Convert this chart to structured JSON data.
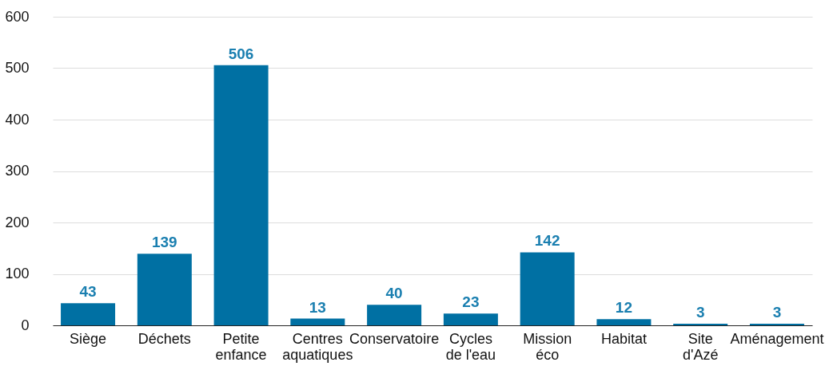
{
  "chart_data": {
    "type": "bar",
    "categories": [
      "Siège",
      "Déchets",
      "Petite\nenfance",
      "Centres\naquatiques",
      "Conservatoire",
      "Cycles\nde l'eau",
      "Mission\néco",
      "Habitat",
      "Site\nd'Azé",
      "Aménagement"
    ],
    "values": [
      43,
      139,
      506,
      13,
      40,
      23,
      142,
      12,
      3,
      3
    ],
    "color": "#0070a3",
    "ylim": [
      0,
      600
    ],
    "yticks": [
      0,
      100,
      200,
      300,
      400,
      500,
      600
    ],
    "grid": "y",
    "data_labels": true
  }
}
